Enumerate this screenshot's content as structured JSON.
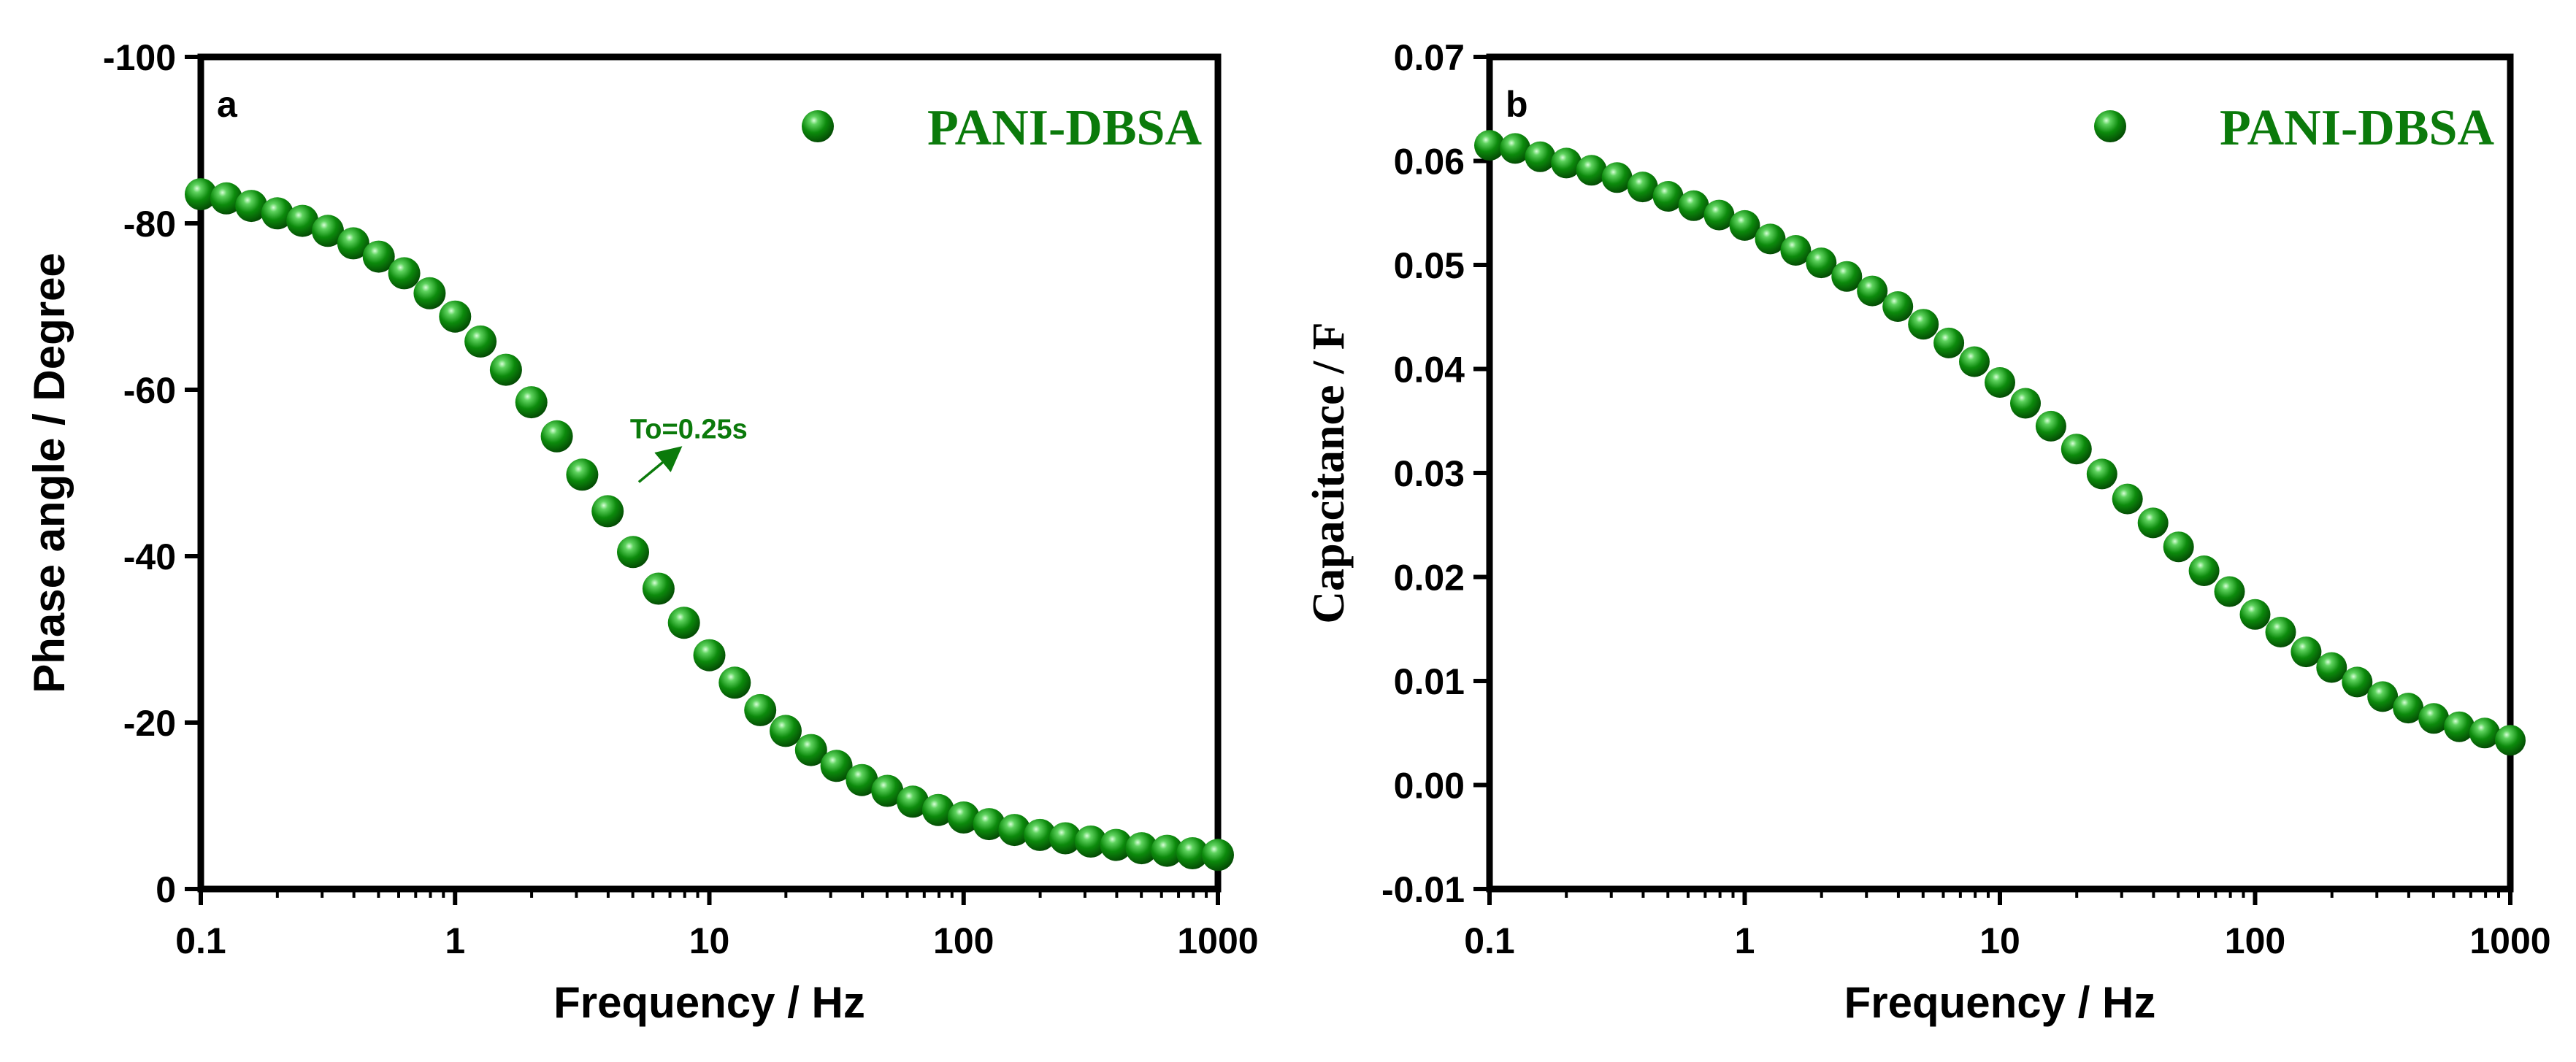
{
  "colors": {
    "series": "#0c8a0c",
    "series_light": "#bff0bf",
    "series_dark": "#044a04",
    "text_green": "#0b7a0b",
    "axis": "#000000"
  },
  "chart_data": [
    {
      "type": "scatter",
      "panel_letter": "a",
      "xlabel": "Frequency / Hz",
      "ylabel": "Phase angle / Degree",
      "x_scale": "log",
      "xlim": [
        0.1,
        1000
      ],
      "ylim": [
        0,
        -100
      ],
      "x_ticks": [
        "0.1",
        "1",
        "10",
        "100",
        "1000"
      ],
      "y_ticks": [
        "0",
        "-20",
        "-40",
        "-60",
        "-80",
        "-100"
      ],
      "legend": {
        "label": "PANI-DBSA",
        "position": "top-right"
      },
      "annotation": {
        "text": "To=0.25s",
        "x": 4.0,
        "y": -45.4
      },
      "series": [
        {
          "name": "PANI-DBSA",
          "x": [
            0.1,
            0.126,
            0.158,
            0.2,
            0.251,
            0.316,
            0.398,
            0.501,
            0.631,
            0.794,
            1.0,
            1.259,
            1.585,
            1.995,
            2.512,
            3.162,
            3.981,
            5.012,
            6.31,
            7.943,
            10.0,
            12.59,
            15.85,
            19.95,
            25.12,
            31.62,
            39.81,
            50.12,
            63.1,
            79.43,
            100.0,
            125.9,
            158.5,
            199.5,
            251.2,
            316.2,
            398.1,
            501.2,
            631.0,
            794.3,
            1000.0
          ],
          "y": [
            -83.5,
            -83.0,
            -82.1,
            -81.2,
            -80.3,
            -79.1,
            -77.6,
            -76.0,
            -74.0,
            -71.6,
            -68.8,
            -65.8,
            -62.4,
            -58.5,
            -54.4,
            -49.8,
            -45.4,
            -40.5,
            -36.1,
            -32.0,
            -28.1,
            -24.8,
            -21.5,
            -19.0,
            -16.7,
            -14.8,
            -13.1,
            -11.8,
            -10.5,
            -9.5,
            -8.6,
            -7.8,
            -7.1,
            -6.5,
            -6.1,
            -5.7,
            -5.3,
            -4.9,
            -4.6,
            -4.3,
            -4.1
          ]
        }
      ]
    },
    {
      "type": "scatter",
      "panel_letter": "b",
      "xlabel": "Frequency / Hz",
      "ylabel": "Capacitance / F",
      "x_scale": "log",
      "xlim": [
        0.1,
        1000
      ],
      "ylim": [
        -0.01,
        0.07
      ],
      "x_ticks": [
        "0.1",
        "1",
        "10",
        "100",
        "1000"
      ],
      "y_ticks": [
        "-0.01",
        "0.00",
        "0.01",
        "0.02",
        "0.03",
        "0.04",
        "0.05",
        "0.06",
        "0.07"
      ],
      "legend": {
        "label": "PANI-DBSA",
        "position": "top-right"
      },
      "series": [
        {
          "name": "PANI-DBSA",
          "x": [
            0.1,
            0.126,
            0.158,
            0.2,
            0.251,
            0.316,
            0.398,
            0.501,
            0.631,
            0.794,
            1.0,
            1.259,
            1.585,
            1.995,
            2.512,
            3.162,
            3.981,
            5.012,
            6.31,
            7.943,
            10.0,
            12.59,
            15.85,
            19.95,
            25.12,
            31.62,
            39.81,
            50.12,
            63.1,
            79.43,
            100.0,
            125.9,
            158.5,
            199.5,
            251.2,
            316.2,
            398.1,
            501.2,
            631.0,
            794.3,
            1000.0
          ],
          "y": [
            0.0615,
            0.0612,
            0.0604,
            0.0598,
            0.0591,
            0.0584,
            0.0575,
            0.0566,
            0.0557,
            0.0548,
            0.0538,
            0.0525,
            0.0514,
            0.0502,
            0.0489,
            0.0475,
            0.046,
            0.0443,
            0.0425,
            0.0407,
            0.0387,
            0.0367,
            0.0345,
            0.0323,
            0.0299,
            0.0275,
            0.0252,
            0.0229,
            0.0206,
            0.0186,
            0.0164,
            0.0147,
            0.0128,
            0.0113,
            0.0099,
            0.0085,
            0.0074,
            0.0064,
            0.0056,
            0.005,
            0.0043
          ]
        }
      ]
    }
  ]
}
